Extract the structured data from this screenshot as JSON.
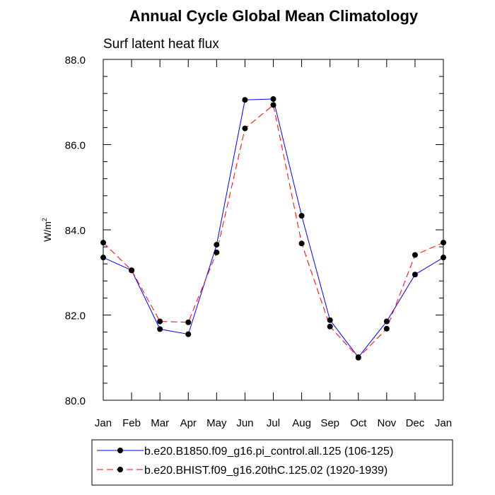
{
  "chart_data": {
    "type": "line",
    "title": "Annual Cycle Global Mean Climatology",
    "subtitle": "Surf latent heat flux",
    "xlabel": "",
    "ylabel": "W/m",
    "ylabel_sup": "2",
    "ylim": [
      80.0,
      88.0
    ],
    "yticks": [
      "80.0",
      "82.0",
      "84.0",
      "86.0",
      "88.0"
    ],
    "categories": [
      "Jan",
      "Feb",
      "Mar",
      "Apr",
      "May",
      "Jun",
      "Jul",
      "Aug",
      "Sep",
      "Oct",
      "Nov",
      "Dec",
      "Jan"
    ],
    "series": [
      {
        "name": "b.e20.B1850.f09_g16.pi_control.all.125 (106-125)",
        "color": "#0000ff",
        "dash": "solid",
        "values": [
          83.35,
          83.05,
          81.67,
          81.55,
          83.65,
          87.05,
          87.07,
          84.33,
          81.88,
          81.01,
          81.85,
          82.95,
          83.35
        ]
      },
      {
        "name": "b.e20.BHIST.f09_g16.20thC.125.02 (1920-1939)",
        "color": "#ff0000",
        "dash": "dashed",
        "values": [
          83.7,
          83.05,
          81.85,
          81.83,
          83.47,
          86.38,
          86.93,
          83.68,
          81.73,
          81.0,
          81.68,
          83.41,
          83.7
        ]
      }
    ]
  }
}
